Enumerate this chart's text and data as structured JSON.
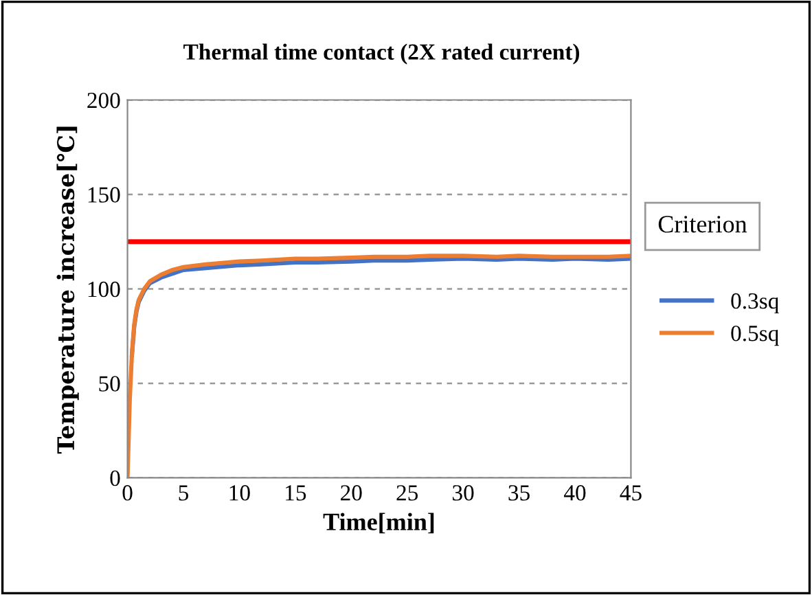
{
  "chart_data": {
    "type": "line",
    "title": "Thermal time contact (2X rated current)",
    "xlabel": "Time[min]",
    "ylabel": "Temperature increase[℃]",
    "xlim": [
      0,
      45
    ],
    "xticks": [
      0,
      5,
      10,
      15,
      20,
      25,
      30,
      35,
      40,
      45
    ],
    "ylim": [
      0,
      200
    ],
    "yticks": [
      0,
      50,
      100,
      150,
      200
    ],
    "grid": "y",
    "legend": "right",
    "marker": "none",
    "line_style": "solid",
    "series": [
      {
        "name": "0.3sq",
        "color": "#4472c4",
        "x": [
          0.4,
          0.6,
          0.8,
          1,
          1.5,
          2,
          3,
          4,
          5,
          7,
          10,
          12,
          15,
          17,
          20,
          22,
          25,
          27,
          30,
          33,
          35,
          38,
          40,
          43,
          45
        ],
        "values": [
          65,
          80,
          88,
          93,
          99,
          103,
          106,
          108,
          110,
          111,
          112.5,
          113,
          114,
          114,
          114.5,
          115,
          115,
          115.5,
          116,
          115.5,
          116,
          115.5,
          116,
          115.5,
          116
        ]
      },
      {
        "name": "0.5sq",
        "color": "#ed7d31",
        "x": [
          0,
          0.2,
          0.4,
          0.6,
          0.8,
          1,
          1.5,
          2,
          3,
          4,
          5,
          7,
          10,
          12,
          15,
          17,
          20,
          22,
          25,
          27,
          30,
          33,
          35,
          38,
          40,
          43,
          45
        ],
        "values": [
          0,
          41,
          66,
          81,
          89,
          94,
          100,
          104,
          107.5,
          110,
          111.5,
          113,
          114.5,
          115,
          116,
          116,
          116.5,
          117,
          117,
          117.5,
          117.5,
          117,
          117.5,
          117,
          117,
          117,
          117.5
        ]
      }
    ],
    "ref_lines": [
      {
        "axis": "y",
        "value": 125,
        "label": "Criterion",
        "color": "#ff0000"
      }
    ]
  }
}
